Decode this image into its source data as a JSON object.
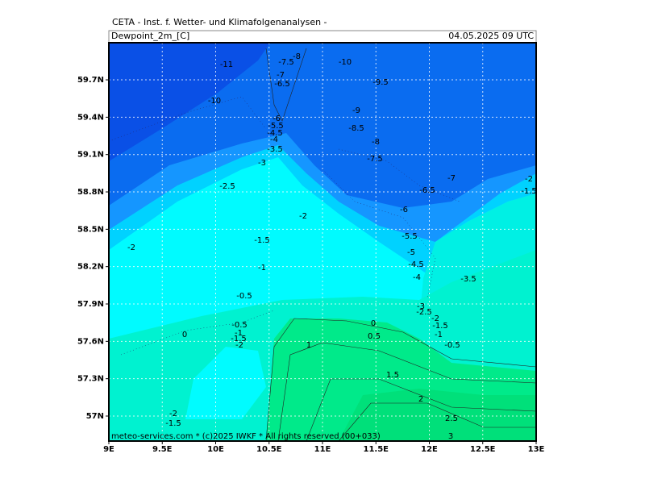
{
  "header": {
    "title": "CETA - Inst. f. Wetter- und Klimafolgenanalysen -",
    "field": "Dewpoint_2m_[C]",
    "valid": "04.05.2025 09 UTC"
  },
  "map": {
    "lon_ticks": [
      "9E",
      "9.5E",
      "10E",
      "10.5E",
      "11E",
      "11.5E",
      "12E",
      "12.5E",
      "13E"
    ],
    "lat_ticks": [
      "57N",
      "57.3N",
      "57.6N",
      "57.9N",
      "58.2N",
      "58.5N",
      "58.8N",
      "59.1N",
      "59.4N",
      "59.7N"
    ],
    "contour_labels": [
      "-11",
      "-10",
      "-8",
      "-7.5",
      "-7",
      "-6.5",
      "-6",
      "-5.5",
      "-4.5",
      "-4",
      "-3.5",
      "-3",
      "-2.5",
      "-2",
      "-2",
      "-1.5",
      "-1",
      "-0.5",
      "-0.5",
      "-1",
      "-1.5",
      "-2",
      "0",
      "-10",
      "-9.5",
      "-9",
      "-8.5",
      "-8",
      "-7.5",
      "-7",
      "-6.5",
      "-6",
      "-5.5",
      "-5",
      "-4.5",
      "-4",
      "-3.5",
      "-3",
      "-2.5",
      "-2",
      "-1.5",
      "-1",
      "-0.5",
      "0",
      "0.5",
      "1",
      "1.5",
      "2",
      "2.5",
      "3",
      "-2",
      "-1.5",
      "-2",
      "-1.5"
    ],
    "credit": "meteo-services.com * (c)2025 IWKF * All rights reserved (00+033)"
  }
}
